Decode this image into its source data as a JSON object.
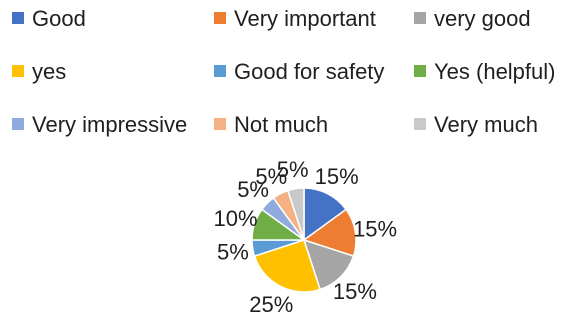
{
  "chart_data": {
    "type": "pie",
    "slices": [
      {
        "label": "Good",
        "value": 15,
        "value_label": "15%",
        "color": "#4472C4"
      },
      {
        "label": "Very important",
        "value": 15,
        "value_label": "15%",
        "color": "#ED7D31"
      },
      {
        "label": "very good",
        "value": 15,
        "value_label": "15%",
        "color": "#A5A5A5"
      },
      {
        "label": "yes",
        "value": 25,
        "value_label": "25%",
        "color": "#FFC000"
      },
      {
        "label": "Good for safety",
        "value": 5,
        "value_label": "5%",
        "color": "#5B9BD5"
      },
      {
        "label": "Yes (helpful)",
        "value": 10,
        "value_label": "10%",
        "color": "#70AD47"
      },
      {
        "label": "Very impressive",
        "value": 5,
        "value_label": "5%",
        "color": "#8FAADC"
      },
      {
        "label": "Not much",
        "value": 5,
        "value_label": "5%",
        "color": "#F4B183"
      },
      {
        "label": "Very much",
        "value": 5,
        "value_label": "5%",
        "color": "#C9C9C9"
      }
    ],
    "legend_position": "top",
    "title": ""
  }
}
